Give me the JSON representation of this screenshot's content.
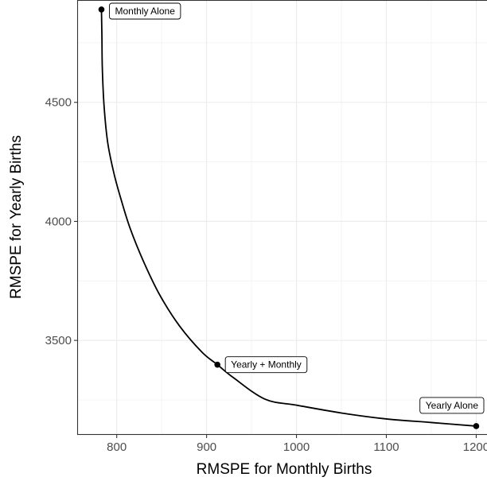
{
  "chart_data": {
    "type": "line",
    "xlabel": "RMSPE for Monthly Births",
    "ylabel": "RMSPE for Yearly Births",
    "xlim": [
      756,
      1212
    ],
    "ylim": [
      3103,
      4930
    ],
    "x_ticks": [
      800,
      900,
      1000,
      1100,
      1200
    ],
    "y_ticks": [
      3500,
      4000,
      4500
    ],
    "x_tick_labels": [
      "800",
      "900",
      "1000",
      "1100",
      "1200"
    ],
    "y_tick_labels": [
      "3500",
      "4000",
      "4500"
    ],
    "grid": true,
    "series": [
      {
        "x": [
          783,
          783.5,
          784,
          786,
          790,
          797,
          805,
          815,
          830,
          848,
          870,
          895,
          912,
          930,
          965,
          1000,
          1050,
          1100,
          1150,
          1200
        ],
        "y": [
          4890,
          4780,
          4640,
          4480,
          4330,
          4200,
          4090,
          3970,
          3830,
          3690,
          3560,
          3450,
          3398,
          3343,
          3253,
          3228,
          3195,
          3170,
          3155,
          3140
        ]
      }
    ],
    "points": [
      {
        "x": 783,
        "y": 4890,
        "label": "Monthly Alone"
      },
      {
        "x": 912,
        "y": 3398,
        "label": "Yearly + Monthly"
      },
      {
        "x": 1200,
        "y": 3140,
        "label": "Yearly Alone"
      }
    ]
  }
}
